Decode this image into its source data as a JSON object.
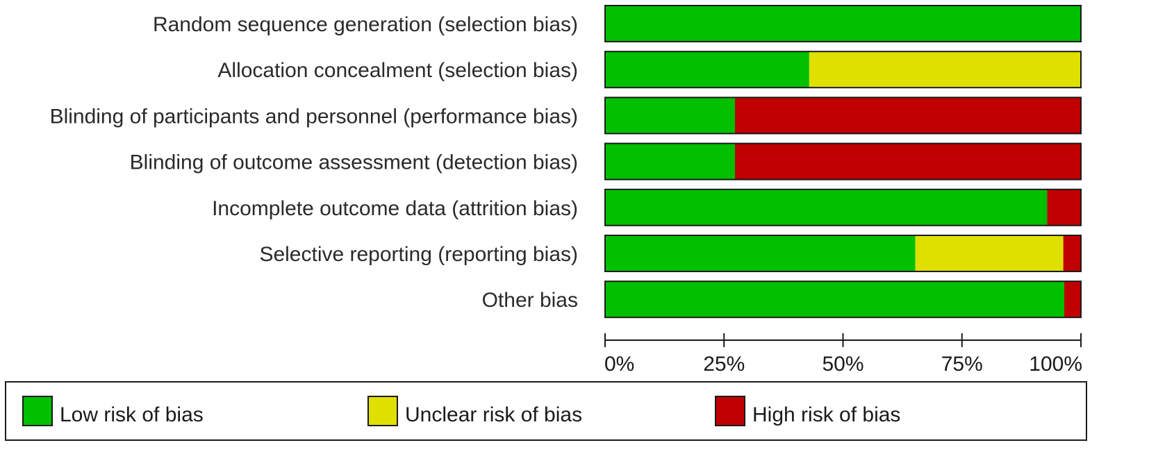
{
  "chart_data": {
    "type": "bar",
    "orientation": "horizontal",
    "stacked": true,
    "percent": true,
    "categories": [
      "Random sequence generation (selection bias)",
      "Allocation concealment (selection bias)",
      "Blinding of participants and personnel (performance bias)",
      "Blinding of outcome assessment (detection bias)",
      "Incomplete outcome data (attrition bias)",
      "Selective reporting (reporting bias)",
      "Other bias"
    ],
    "series": [
      {
        "name": "Low risk of bias",
        "color": "#00c000",
        "values": [
          100,
          42.9,
          27.3,
          27.3,
          92.9,
          65.2,
          96.5
        ]
      },
      {
        "name": "Unclear risk of bias",
        "color": "#e0e000",
        "values": [
          0,
          57.1,
          0,
          0,
          0,
          31.1,
          0
        ]
      },
      {
        "name": "High risk of bias",
        "color": "#c00000",
        "values": [
          0,
          0,
          72.7,
          72.7,
          7.1,
          3.7,
          3.5
        ]
      }
    ],
    "xlim": [
      0,
      100
    ],
    "xticks": [
      "0%",
      "25%",
      "50%",
      "75%",
      "100%"
    ],
    "legend_position": "bottom",
    "title": "",
    "xlabel": "",
    "ylabel": ""
  }
}
